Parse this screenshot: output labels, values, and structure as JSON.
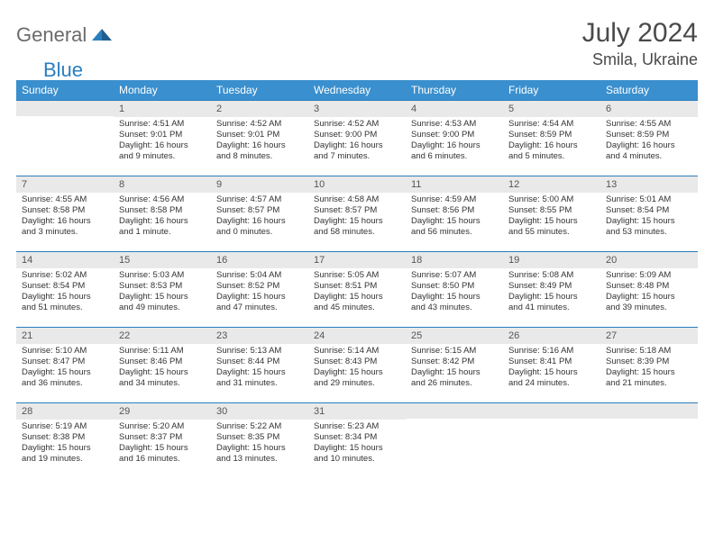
{
  "brand": {
    "part1": "General",
    "part2": "Blue",
    "logo_color": "#2a7fbf",
    "gray": "#6b6b6b"
  },
  "title": "July 2024",
  "location": "Smila, Ukraine",
  "colors": {
    "header_bg": "#3a8fce",
    "header_text": "#ffffff",
    "daynum_bg": "#e9e9e9",
    "rule": "#2a7fbf",
    "body_text": "#333333",
    "title_text": "#4a4a4a"
  },
  "weekdays": [
    "Sunday",
    "Monday",
    "Tuesday",
    "Wednesday",
    "Thursday",
    "Friday",
    "Saturday"
  ],
  "weeks": [
    [
      {
        "n": "",
        "lines": []
      },
      {
        "n": "1",
        "lines": [
          "Sunrise: 4:51 AM",
          "Sunset: 9:01 PM",
          "Daylight: 16 hours",
          "and 9 minutes."
        ]
      },
      {
        "n": "2",
        "lines": [
          "Sunrise: 4:52 AM",
          "Sunset: 9:01 PM",
          "Daylight: 16 hours",
          "and 8 minutes."
        ]
      },
      {
        "n": "3",
        "lines": [
          "Sunrise: 4:52 AM",
          "Sunset: 9:00 PM",
          "Daylight: 16 hours",
          "and 7 minutes."
        ]
      },
      {
        "n": "4",
        "lines": [
          "Sunrise: 4:53 AM",
          "Sunset: 9:00 PM",
          "Daylight: 16 hours",
          "and 6 minutes."
        ]
      },
      {
        "n": "5",
        "lines": [
          "Sunrise: 4:54 AM",
          "Sunset: 8:59 PM",
          "Daylight: 16 hours",
          "and 5 minutes."
        ]
      },
      {
        "n": "6",
        "lines": [
          "Sunrise: 4:55 AM",
          "Sunset: 8:59 PM",
          "Daylight: 16 hours",
          "and 4 minutes."
        ]
      }
    ],
    [
      {
        "n": "7",
        "lines": [
          "Sunrise: 4:55 AM",
          "Sunset: 8:58 PM",
          "Daylight: 16 hours",
          "and 3 minutes."
        ]
      },
      {
        "n": "8",
        "lines": [
          "Sunrise: 4:56 AM",
          "Sunset: 8:58 PM",
          "Daylight: 16 hours",
          "and 1 minute."
        ]
      },
      {
        "n": "9",
        "lines": [
          "Sunrise: 4:57 AM",
          "Sunset: 8:57 PM",
          "Daylight: 16 hours",
          "and 0 minutes."
        ]
      },
      {
        "n": "10",
        "lines": [
          "Sunrise: 4:58 AM",
          "Sunset: 8:57 PM",
          "Daylight: 15 hours",
          "and 58 minutes."
        ]
      },
      {
        "n": "11",
        "lines": [
          "Sunrise: 4:59 AM",
          "Sunset: 8:56 PM",
          "Daylight: 15 hours",
          "and 56 minutes."
        ]
      },
      {
        "n": "12",
        "lines": [
          "Sunrise: 5:00 AM",
          "Sunset: 8:55 PM",
          "Daylight: 15 hours",
          "and 55 minutes."
        ]
      },
      {
        "n": "13",
        "lines": [
          "Sunrise: 5:01 AM",
          "Sunset: 8:54 PM",
          "Daylight: 15 hours",
          "and 53 minutes."
        ]
      }
    ],
    [
      {
        "n": "14",
        "lines": [
          "Sunrise: 5:02 AM",
          "Sunset: 8:54 PM",
          "Daylight: 15 hours",
          "and 51 minutes."
        ]
      },
      {
        "n": "15",
        "lines": [
          "Sunrise: 5:03 AM",
          "Sunset: 8:53 PM",
          "Daylight: 15 hours",
          "and 49 minutes."
        ]
      },
      {
        "n": "16",
        "lines": [
          "Sunrise: 5:04 AM",
          "Sunset: 8:52 PM",
          "Daylight: 15 hours",
          "and 47 minutes."
        ]
      },
      {
        "n": "17",
        "lines": [
          "Sunrise: 5:05 AM",
          "Sunset: 8:51 PM",
          "Daylight: 15 hours",
          "and 45 minutes."
        ]
      },
      {
        "n": "18",
        "lines": [
          "Sunrise: 5:07 AM",
          "Sunset: 8:50 PM",
          "Daylight: 15 hours",
          "and 43 minutes."
        ]
      },
      {
        "n": "19",
        "lines": [
          "Sunrise: 5:08 AM",
          "Sunset: 8:49 PM",
          "Daylight: 15 hours",
          "and 41 minutes."
        ]
      },
      {
        "n": "20",
        "lines": [
          "Sunrise: 5:09 AM",
          "Sunset: 8:48 PM",
          "Daylight: 15 hours",
          "and 39 minutes."
        ]
      }
    ],
    [
      {
        "n": "21",
        "lines": [
          "Sunrise: 5:10 AM",
          "Sunset: 8:47 PM",
          "Daylight: 15 hours",
          "and 36 minutes."
        ]
      },
      {
        "n": "22",
        "lines": [
          "Sunrise: 5:11 AM",
          "Sunset: 8:46 PM",
          "Daylight: 15 hours",
          "and 34 minutes."
        ]
      },
      {
        "n": "23",
        "lines": [
          "Sunrise: 5:13 AM",
          "Sunset: 8:44 PM",
          "Daylight: 15 hours",
          "and 31 minutes."
        ]
      },
      {
        "n": "24",
        "lines": [
          "Sunrise: 5:14 AM",
          "Sunset: 8:43 PM",
          "Daylight: 15 hours",
          "and 29 minutes."
        ]
      },
      {
        "n": "25",
        "lines": [
          "Sunrise: 5:15 AM",
          "Sunset: 8:42 PM",
          "Daylight: 15 hours",
          "and 26 minutes."
        ]
      },
      {
        "n": "26",
        "lines": [
          "Sunrise: 5:16 AM",
          "Sunset: 8:41 PM",
          "Daylight: 15 hours",
          "and 24 minutes."
        ]
      },
      {
        "n": "27",
        "lines": [
          "Sunrise: 5:18 AM",
          "Sunset: 8:39 PM",
          "Daylight: 15 hours",
          "and 21 minutes."
        ]
      }
    ],
    [
      {
        "n": "28",
        "lines": [
          "Sunrise: 5:19 AM",
          "Sunset: 8:38 PM",
          "Daylight: 15 hours",
          "and 19 minutes."
        ]
      },
      {
        "n": "29",
        "lines": [
          "Sunrise: 5:20 AM",
          "Sunset: 8:37 PM",
          "Daylight: 15 hours",
          "and 16 minutes."
        ]
      },
      {
        "n": "30",
        "lines": [
          "Sunrise: 5:22 AM",
          "Sunset: 8:35 PM",
          "Daylight: 15 hours",
          "and 13 minutes."
        ]
      },
      {
        "n": "31",
        "lines": [
          "Sunrise: 5:23 AM",
          "Sunset: 8:34 PM",
          "Daylight: 15 hours",
          "and 10 minutes."
        ]
      },
      {
        "n": "",
        "lines": []
      },
      {
        "n": "",
        "lines": []
      },
      {
        "n": "",
        "lines": []
      }
    ]
  ]
}
